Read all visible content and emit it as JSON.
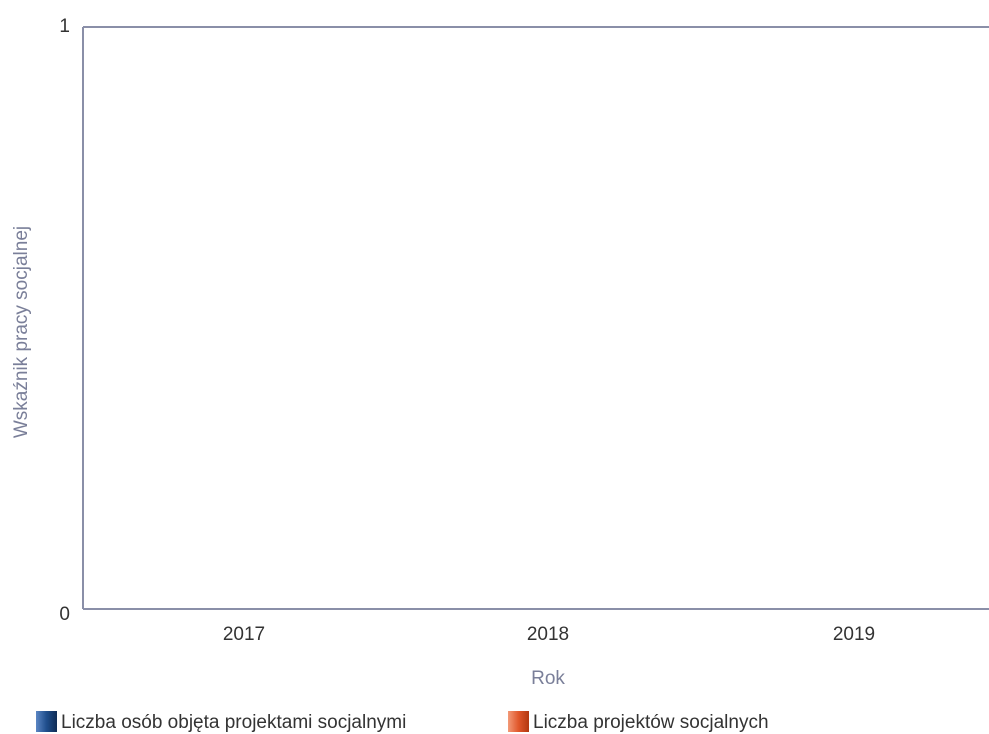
{
  "chart_data": {
    "type": "bar",
    "title": "",
    "xlabel": "Rok",
    "ylabel": "Wskaźnik pracy socjalnej",
    "categories": [
      "2017",
      "2018",
      "2019"
    ],
    "ylim": [
      0,
      1
    ],
    "yticks": [
      "0",
      "1"
    ],
    "grid": false,
    "legend_position": "bottom-left",
    "series": [
      {
        "name": "Liczba osób objęta projektami socjalnymi",
        "values": [
          0,
          0,
          0
        ],
        "color": "#1f4e8c"
      },
      {
        "name": "Liczba projektów socjalnych",
        "values": [
          0,
          0,
          0
        ],
        "color": "#e0572b"
      }
    ],
    "axis_color": "#8a8fa8"
  }
}
